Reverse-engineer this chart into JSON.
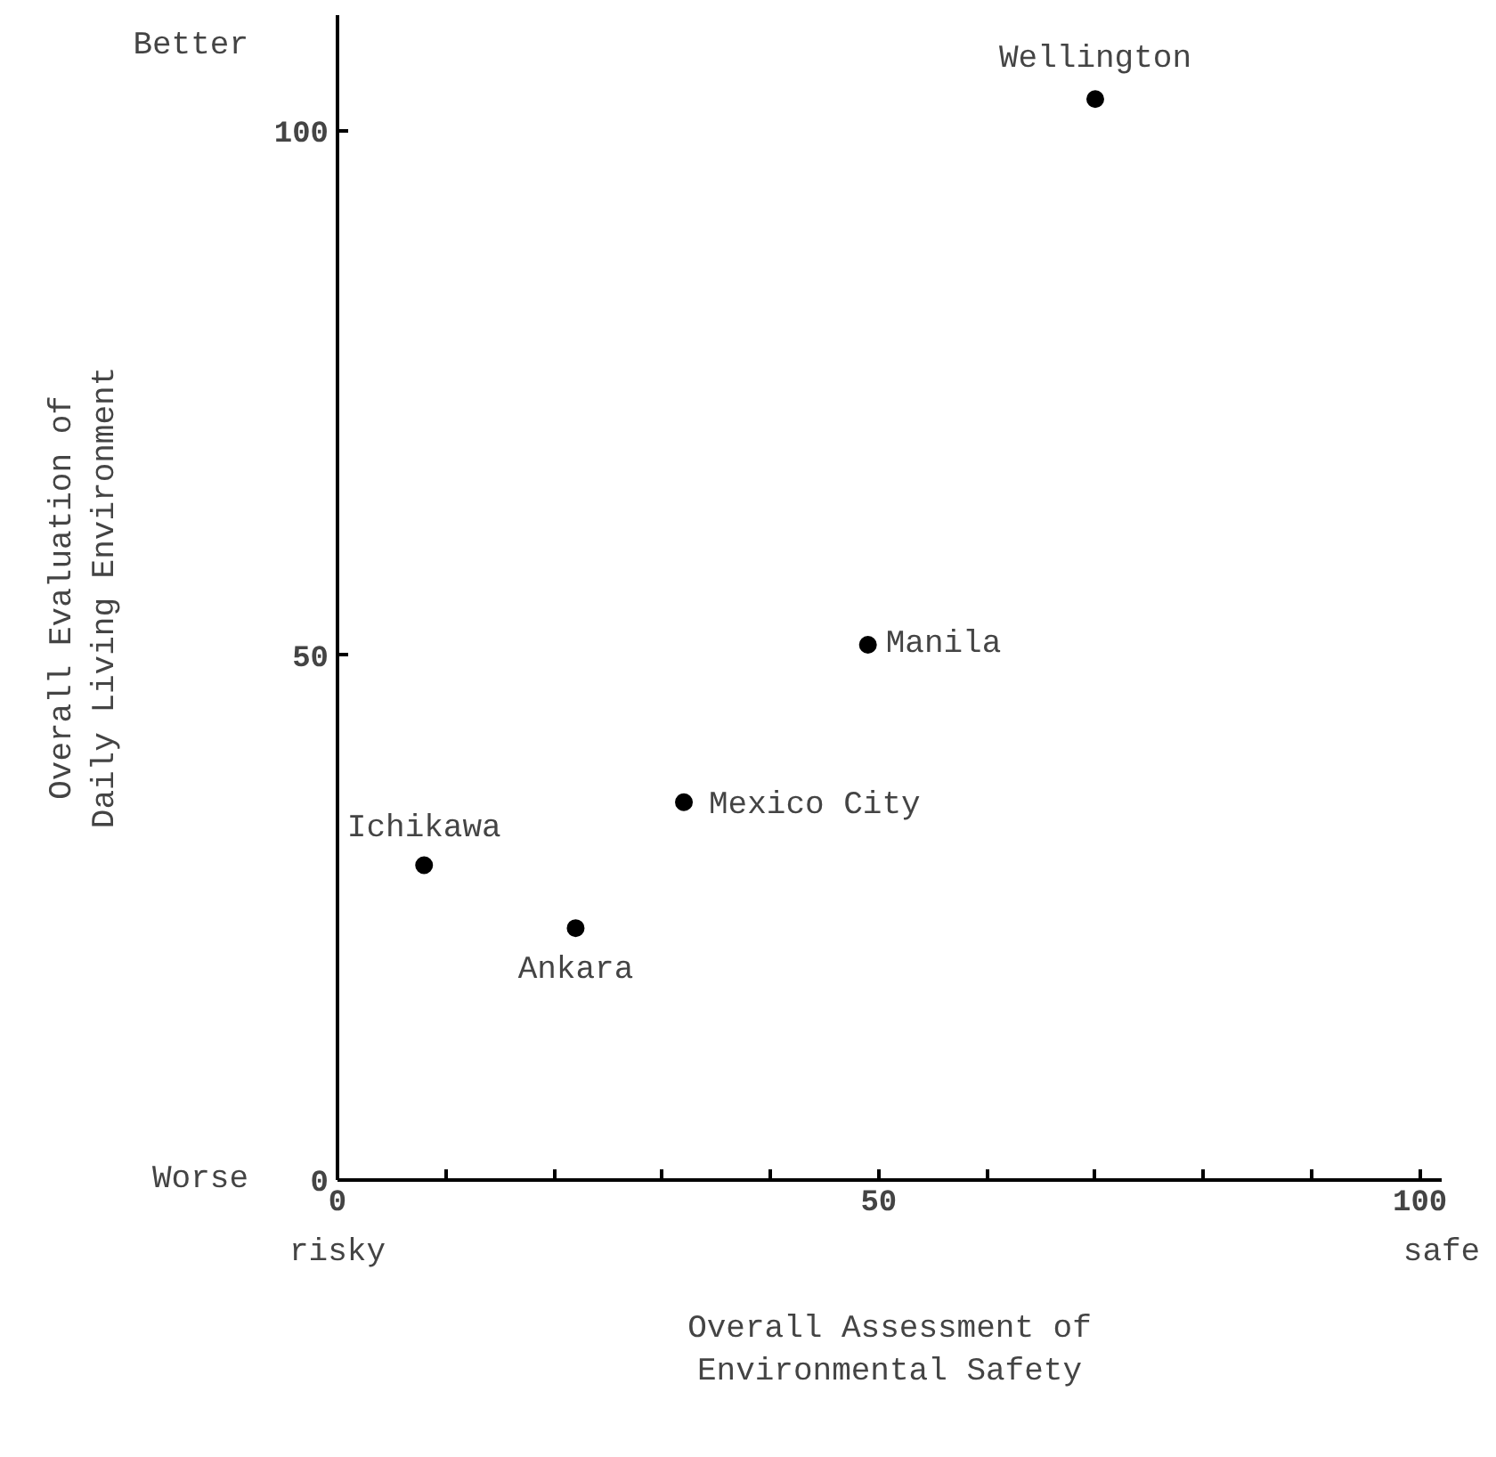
{
  "chart_data": {
    "type": "scatter",
    "xlabel": "Overall Assessment of\nEnvironmental Safety",
    "ylabel": "Overall Evaluation of\nDaily Living Environment",
    "x": [
      70,
      49,
      32,
      8,
      22
    ],
    "values": [
      103,
      51,
      36,
      30,
      24
    ],
    "color": "#000000",
    "marker": "circle",
    "grid": false,
    "legend": false,
    "xlim": [
      0,
      102
    ],
    "ylim": [
      0,
      111
    ],
    "xticks": [
      0,
      {
        "value": 10,
        "label": null
      },
      {
        "value": 20,
        "label": null
      },
      {
        "value": 30,
        "label": null
      },
      {
        "value": 40,
        "label": null
      },
      50,
      {
        "value": 60,
        "label": null
      },
      {
        "value": 70,
        "label": null
      },
      {
        "value": 80,
        "label": null
      },
      {
        "value": 90,
        "label": null
      },
      100
    ],
    "yticks": [
      0,
      50,
      100
    ],
    "annotations": [
      {
        "text": "Wellington",
        "x": 70,
        "y": 103
      },
      {
        "text": "Manila",
        "x": 49,
        "y": 51
      },
      {
        "text": "Mexico City",
        "x": 32,
        "y": 36
      },
      {
        "text": "Ichikawa",
        "x": 8,
        "y": 30
      },
      {
        "text": "Ankara",
        "x": 22,
        "y": 24
      },
      "Better",
      "Worse",
      "risky",
      "safe"
    ]
  }
}
